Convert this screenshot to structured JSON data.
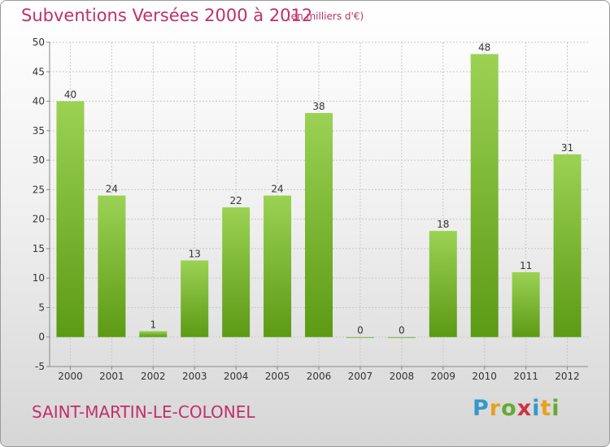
{
  "header": {
    "title": "Subventions Versées 2000 à 2012",
    "unit": "(en milliers d'€)"
  },
  "footer": {
    "commune": "SAINT-MARTIN-LE-COLONEL",
    "logo_letters": [
      "P",
      "r",
      "o",
      "x",
      "i",
      "t",
      "i"
    ],
    "logo_colors": [
      "#3399cc",
      "#e8a020",
      "#66aa33",
      "#cc3344",
      "#3399cc",
      "#e8a020",
      "#66aa33"
    ]
  },
  "colors": {
    "accent": "#c0306a",
    "bar_top": "#9bd254",
    "bar_bottom": "#5c9a14",
    "grid": "#c8c8c8"
  },
  "chart_data": {
    "type": "bar",
    "title": "Subventions Versées 2000 à 2012",
    "categories": [
      "2000",
      "2001",
      "2002",
      "2003",
      "2004",
      "2005",
      "2006",
      "2007",
      "2008",
      "2009",
      "2010",
      "2011",
      "2012"
    ],
    "values": [
      40,
      24,
      1,
      13,
      22,
      24,
      38,
      0,
      0,
      18,
      48,
      11,
      31
    ],
    "ylim": [
      -5,
      50
    ],
    "yticks": [
      -5,
      0,
      5,
      10,
      15,
      20,
      25,
      30,
      35,
      40,
      45,
      50
    ],
    "grid": true
  }
}
